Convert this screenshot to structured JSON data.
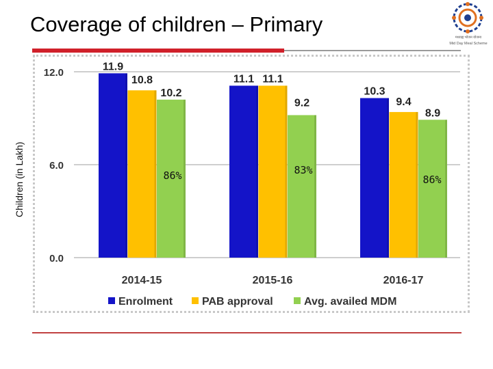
{
  "page": {
    "title": "Coverage of children – Primary",
    "logo": {
      "name": "mid-day-meal-logo",
      "caption_hindi": "मध्याह्न भोजन योजना",
      "caption_en": "Mid Day Meal Scheme"
    }
  },
  "chart_data": {
    "type": "bar",
    "title": "Coverage of children – Primary",
    "ylabel": "Children (in Lakh)",
    "xlabel": "",
    "ylim": [
      0,
      12
    ],
    "yticks": [
      0,
      6,
      12
    ],
    "ytick_labels": [
      "0.0",
      "6.0",
      "12.0"
    ],
    "grid": true,
    "legend_position": "bottom",
    "categories": [
      "2014-15",
      "2015-16",
      "2016-17"
    ],
    "series": [
      {
        "name": "Enrolment",
        "color": "#1414c8",
        "values": [
          11.9,
          11.1,
          10.3
        ],
        "labels": [
          "11.9",
          "11.1",
          "10.3"
        ]
      },
      {
        "name": "PAB approval",
        "color": "#ffc000",
        "values": [
          10.8,
          11.1,
          9.4
        ],
        "labels": [
          "10.8",
          "11.1",
          "9.4"
        ]
      },
      {
        "name": "Avg. availed MDM",
        "color": "#92d050",
        "values": [
          10.2,
          9.2,
          8.9
        ],
        "labels": [
          "10.2",
          "9.2",
          "8.9"
        ]
      }
    ],
    "annotations": [
      "86%",
      "83%",
      "86%"
    ]
  }
}
